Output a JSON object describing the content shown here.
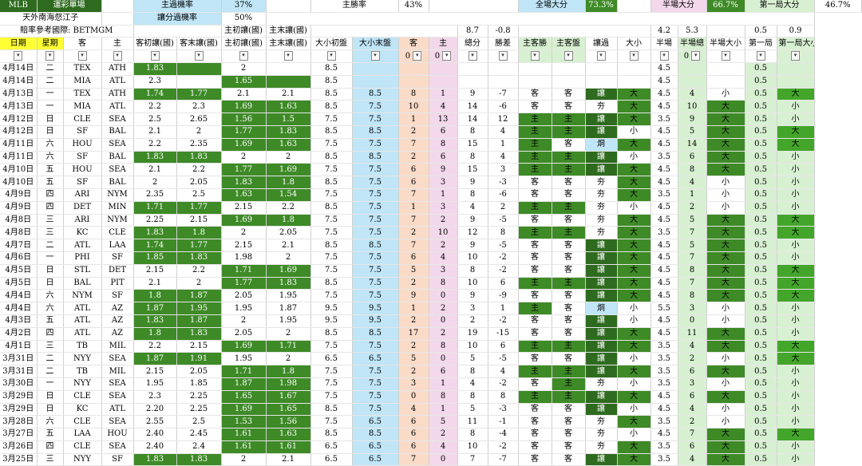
{
  "info": {
    "league": "MLB",
    "sheet_title": "運彩單場",
    "home_pass_label": "主過機率",
    "home_pass_val": "37%",
    "home_win_label": "主勝率",
    "home_win_val": "43%",
    "full_big_label": "全場大分",
    "full_big_val": "73.3%",
    "half_big_label": "半場大分",
    "half_big_val": "66.7%",
    "first_big_label": "第一局大分",
    "first_big_val": "46.7%",
    "author": "天外南海惄江子",
    "handicap_pass_label": "讓分過機率",
    "handicap_pass_val": "50%",
    "odds_ref": "賠率參考國際: BETMGM",
    "home_init_label": "主初讓(國)",
    "home_end_label": "主末讓(國)",
    "avg_total": "8.7",
    "avg_diff": "-0.8",
    "avg_half_a": "4.2",
    "avg_half_b": "5.3",
    "avg_first_a": "0.5",
    "avg_first_b": "0.9"
  },
  "headers": [
    "日期",
    "星期",
    "客",
    "主",
    "客初讓(國)",
    "客末讓(國)",
    "主初讓(國)",
    "主末讓(國)",
    "大小初盤",
    "大小末盤",
    "客",
    "主",
    "總分",
    "勝差",
    "主客勝",
    "主客盤",
    "讓過",
    "大小",
    "半場",
    "半場總",
    "半場大小",
    "第一局",
    "第一局大小"
  ],
  "filter_values": [
    "0",
    "0",
    "0"
  ],
  "rows": [
    {
      "d": "4月14日",
      "w": "二",
      "a": "TEX",
      "h": "ATH",
      "ai": "1.83",
      "ae": "",
      "hi": "2",
      "he": "",
      "ou": "8.5",
      "oe": "",
      "as": "",
      "hs": "",
      "t": "",
      "df": "",
      "wn": "",
      "pn": "",
      "cv": "",
      "bs": "",
      "hl": "4.5",
      "ht": "",
      "hb": "",
      "f": "0.5",
      "fb": ""
    },
    {
      "d": "4月14日",
      "w": "二",
      "a": "MIA",
      "h": "ATL",
      "ai": "2.3",
      "ae": "",
      "hi": "1.65",
      "he": "",
      "ou": "8.5",
      "oe": "",
      "as": "",
      "hs": "",
      "t": "",
      "df": "",
      "wn": "",
      "pn": "",
      "cv": "",
      "bs": "",
      "hl": "4.5",
      "ht": "",
      "hb": "",
      "f": "0.5",
      "fb": ""
    },
    {
      "d": "4月13日",
      "w": "一",
      "a": "TEX",
      "h": "ATH",
      "ai": "1.74",
      "ae": "1.77",
      "hi": "2.1",
      "he": "2.1",
      "ou": "8.5",
      "oe": "8.5",
      "as": "8",
      "hs": "1",
      "t": "9",
      "df": "-7",
      "wn": "客",
      "pn": "客",
      "cv": "讓",
      "bs": "大",
      "hl": "4.5",
      "ht": "4",
      "hb": "小",
      "f": "0.5",
      "fb": "大"
    },
    {
      "d": "4月13日",
      "w": "一",
      "a": "MIA",
      "h": "ATL",
      "ai": "2.2",
      "ae": "2.3",
      "hi": "1.69",
      "he": "1.63",
      "ou": "8.5",
      "oe": "7.5",
      "as": "10",
      "hs": "4",
      "t": "14",
      "df": "-6",
      "wn": "客",
      "pn": "客",
      "cv": "夯",
      "bs": "大",
      "hl": "4.5",
      "ht": "10",
      "hb": "大",
      "f": "0.5",
      "fb": "小"
    },
    {
      "d": "4月12日",
      "w": "日",
      "a": "CLE",
      "h": "SEA",
      "ai": "2.5",
      "ae": "2.65",
      "hi": "1.56",
      "he": "1.5",
      "ou": "7.5",
      "oe": "7.5",
      "as": "1",
      "hs": "13",
      "t": "14",
      "df": "12",
      "wn": "主",
      "pn": "主",
      "cv": "讓",
      "bs": "大",
      "hl": "3.5",
      "ht": "9",
      "hb": "大",
      "f": "0.5",
      "fb": "小"
    },
    {
      "d": "4月12日",
      "w": "日",
      "a": "SF",
      "h": "BAL",
      "ai": "2.1",
      "ae": "2",
      "hi": "1.77",
      "he": "1.83",
      "ou": "8.5",
      "oe": "8.5",
      "as": "2",
      "hs": "6",
      "t": "8",
      "df": "4",
      "wn": "主",
      "pn": "主",
      "cv": "讓",
      "bs": "小",
      "hl": "4.5",
      "ht": "5",
      "hb": "大",
      "f": "0.5",
      "fb": "大"
    },
    {
      "d": "4月11日",
      "w": "六",
      "a": "HOU",
      "h": "SEA",
      "ai": "2.2",
      "ae": "2.35",
      "hi": "1.69",
      "he": "1.63",
      "ou": "7.5",
      "oe": "7.5",
      "as": "7",
      "hs": "8",
      "t": "15",
      "df": "1",
      "wn": "主",
      "pn": "客",
      "cv": "烔",
      "bs": "大",
      "hl": "4.5",
      "ht": "14",
      "hb": "大",
      "f": "0.5",
      "fb": "大"
    },
    {
      "d": "4月11日",
      "w": "六",
      "a": "SF",
      "h": "BAL",
      "ai": "1.83",
      "ae": "1.83",
      "hi": "2",
      "he": "2",
      "ou": "8.5",
      "oe": "8.5",
      "as": "2",
      "hs": "6",
      "t": "8",
      "df": "4",
      "wn": "主",
      "pn": "主",
      "cv": "讓",
      "bs": "小",
      "hl": "3.5",
      "ht": "6",
      "hb": "大",
      "f": "0.5",
      "fb": "小"
    },
    {
      "d": "4月10日",
      "w": "五",
      "a": "HOU",
      "h": "SEA",
      "ai": "2.1",
      "ae": "2.2",
      "hi": "1.77",
      "he": "1.69",
      "ou": "7.5",
      "oe": "7.5",
      "as": "6",
      "hs": "9",
      "t": "15",
      "df": "3",
      "wn": "主",
      "pn": "主",
      "cv": "讓",
      "bs": "大",
      "hl": "4.5",
      "ht": "8",
      "hb": "大",
      "f": "0.5",
      "fb": "小"
    },
    {
      "d": "4月10日",
      "w": "五",
      "a": "SF",
      "h": "BAL",
      "ai": "2",
      "ae": "2.05",
      "hi": "1.83",
      "he": "1.8",
      "ou": "8.5",
      "oe": "7.5",
      "as": "6",
      "hs": "3",
      "t": "9",
      "df": "-3",
      "wn": "客",
      "pn": "客",
      "cv": "夯",
      "bs": "大",
      "hl": "4.5",
      "ht": "4",
      "hb": "小",
      "f": "0.5",
      "fb": "小"
    },
    {
      "d": "4月9日",
      "w": "四",
      "a": "ARI",
      "h": "NYM",
      "ai": "2.35",
      "ae": "2.5",
      "hi": "1.63",
      "he": "1.54",
      "ou": "7.5",
      "oe": "7.5",
      "as": "7",
      "hs": "1",
      "t": "8",
      "df": "-6",
      "wn": "客",
      "pn": "客",
      "cv": "夯",
      "bs": "大",
      "hl": "3.5",
      "ht": "1",
      "hb": "小",
      "f": "0.5",
      "fb": "小"
    },
    {
      "d": "4月9日",
      "w": "四",
      "a": "DET",
      "h": "MIN",
      "ai": "1.71",
      "ae": "1.77",
      "hi": "2.15",
      "he": "2.2",
      "ou": "8.5",
      "oe": "7.5",
      "as": "1",
      "hs": "3",
      "t": "4",
      "df": "2",
      "wn": "主",
      "pn": "主",
      "cv": "夯",
      "bs": "小",
      "hl": "4.5",
      "ht": "2",
      "hb": "小",
      "f": "0.5",
      "fb": "小"
    },
    {
      "d": "4月8日",
      "w": "三",
      "a": "ARI",
      "h": "NYM",
      "ai": "2.25",
      "ae": "2.15",
      "hi": "1.69",
      "he": "1.8",
      "ou": "7.5",
      "oe": "7.5",
      "as": "7",
      "hs": "2",
      "t": "9",
      "df": "-5",
      "wn": "客",
      "pn": "客",
      "cv": "夯",
      "bs": "大",
      "hl": "4.5",
      "ht": "5",
      "hb": "大",
      "f": "0.5",
      "fb": "大"
    },
    {
      "d": "4月8日",
      "w": "三",
      "a": "KC",
      "h": "CLE",
      "ai": "1.83",
      "ae": "1.8",
      "hi": "2",
      "he": "2.05",
      "ou": "7.5",
      "oe": "7.5",
      "as": "2",
      "hs": "10",
      "t": "12",
      "df": "8",
      "wn": "主",
      "pn": "主",
      "cv": "夯",
      "bs": "大",
      "hl": "3.5",
      "ht": "7",
      "hb": "大",
      "f": "0.5",
      "fb": "大"
    },
    {
      "d": "4月7日",
      "w": "二",
      "a": "ATL",
      "h": "LAA",
      "ai": "1.74",
      "ae": "1.77",
      "hi": "2.15",
      "he": "2.1",
      "ou": "8.5",
      "oe": "8.5",
      "as": "7",
      "hs": "2",
      "t": "9",
      "df": "-5",
      "wn": "客",
      "pn": "客",
      "cv": "讓",
      "bs": "大",
      "hl": "4.5",
      "ht": "5",
      "hb": "大",
      "f": "0.5",
      "fb": "小"
    },
    {
      "d": "4月6日",
      "w": "一",
      "a": "PHI",
      "h": "SF",
      "ai": "1.85",
      "ae": "1.83",
      "hi": "1.98",
      "he": "2",
      "ou": "7.5",
      "oe": "7.5",
      "as": "6",
      "hs": "4",
      "t": "10",
      "df": "-2",
      "wn": "客",
      "pn": "客",
      "cv": "讓",
      "bs": "大",
      "hl": "4.5",
      "ht": "7",
      "hb": "大",
      "f": "0.5",
      "fb": "小"
    },
    {
      "d": "4月5日",
      "w": "日",
      "a": "STL",
      "h": "DET",
      "ai": "2.15",
      "ae": "2.2",
      "hi": "1.71",
      "he": "1.69",
      "ou": "7.5",
      "oe": "7.5",
      "as": "5",
      "hs": "3",
      "t": "8",
      "df": "-2",
      "wn": "客",
      "pn": "客",
      "cv": "讓",
      "bs": "大",
      "hl": "4.5",
      "ht": "8",
      "hb": "大",
      "f": "0.5",
      "fb": "大"
    },
    {
      "d": "4月5日",
      "w": "日",
      "a": "BAL",
      "h": "PIT",
      "ai": "2.1",
      "ae": "2",
      "hi": "1.77",
      "he": "1.83",
      "ou": "8.5",
      "oe": "7.5",
      "as": "2",
      "hs": "8",
      "t": "10",
      "df": "6",
      "wn": "主",
      "pn": "主",
      "cv": "讓",
      "bs": "大",
      "hl": "4.5",
      "ht": "7",
      "hb": "大",
      "f": "0.5",
      "fb": "大"
    },
    {
      "d": "4月4日",
      "w": "六",
      "a": "NYM",
      "h": "SF",
      "ai": "1.8",
      "ae": "1.87",
      "hi": "2.05",
      "he": "1.95",
      "ou": "7.5",
      "oe": "7.5",
      "as": "9",
      "hs": "0",
      "t": "9",
      "df": "-9",
      "wn": "客",
      "pn": "客",
      "cv": "讓",
      "bs": "大",
      "hl": "4.5",
      "ht": "8",
      "hb": "大",
      "f": "0.5",
      "fb": "大"
    },
    {
      "d": "4月4日",
      "w": "六",
      "a": "ATL",
      "h": "AZ",
      "ai": "1.87",
      "ae": "1.95",
      "hi": "1.95",
      "he": "1.87",
      "ou": "9.5",
      "oe": "9.5",
      "as": "1",
      "hs": "2",
      "t": "3",
      "df": "1",
      "wn": "主",
      "pn": "客",
      "cv": "烔",
      "bs": "小",
      "hl": "5.5",
      "ht": "3",
      "hb": "小",
      "f": "0.5",
      "fb": "小"
    },
    {
      "d": "4月3日",
      "w": "五",
      "a": "ATL",
      "h": "AZ",
      "ai": "1.83",
      "ae": "1.87",
      "hi": "2",
      "he": "1.95",
      "ou": "9.5",
      "oe": "9.5",
      "as": "2",
      "hs": "0",
      "t": "2",
      "df": "-2",
      "wn": "客",
      "pn": "客",
      "cv": "讓",
      "bs": "小",
      "hl": "4.5",
      "ht": "0",
      "hb": "小",
      "f": "0.5",
      "fb": "小"
    },
    {
      "d": "4月2日",
      "w": "四",
      "a": "ATL",
      "h": "AZ",
      "ai": "1.8",
      "ae": "1.83",
      "hi": "2.05",
      "he": "2",
      "ou": "8.5",
      "oe": "8.5",
      "as": "17",
      "hs": "2",
      "t": "19",
      "df": "-15",
      "wn": "客",
      "pn": "客",
      "cv": "讓",
      "bs": "大",
      "hl": "4.5",
      "ht": "11",
      "hb": "大",
      "f": "0.5",
      "fb": "小"
    },
    {
      "d": "4月1日",
      "w": "三",
      "a": "TB",
      "h": "MIL",
      "ai": "2.2",
      "ae": "2.15",
      "hi": "1.69",
      "he": "1.71",
      "ou": "7.5",
      "oe": "7.5",
      "as": "2",
      "hs": "8",
      "t": "10",
      "df": "6",
      "wn": "主",
      "pn": "主",
      "cv": "讓",
      "bs": "大",
      "hl": "3.5",
      "ht": "4",
      "hb": "大",
      "f": "0.5",
      "fb": "大"
    },
    {
      "d": "3月31日",
      "w": "二",
      "a": "NYY",
      "h": "SEA",
      "ai": "1.87",
      "ae": "1.91",
      "hi": "1.95",
      "he": "2",
      "ou": "6.5",
      "oe": "6.5",
      "as": "5",
      "hs": "0",
      "t": "5",
      "df": "-5",
      "wn": "客",
      "pn": "客",
      "cv": "讓",
      "bs": "小",
      "hl": "3.5",
      "ht": "2",
      "hb": "小",
      "f": "0.5",
      "fb": "大"
    },
    {
      "d": "3月31日",
      "w": "二",
      "a": "TB",
      "h": "MIL",
      "ai": "2.15",
      "ae": "2.05",
      "hi": "1.71",
      "he": "1.8",
      "ou": "7.5",
      "oe": "7.5",
      "as": "2",
      "hs": "6",
      "t": "8",
      "df": "4",
      "wn": "主",
      "pn": "主",
      "cv": "讓",
      "bs": "大",
      "hl": "3.5",
      "ht": "6",
      "hb": "大",
      "f": "0.5",
      "fb": "小"
    },
    {
      "d": "3月30日",
      "w": "一",
      "a": "NYY",
      "h": "SEA",
      "ai": "1.95",
      "ae": "1.85",
      "hi": "1.87",
      "he": "1.98",
      "ou": "7.5",
      "oe": "7.5",
      "as": "3",
      "hs": "1",
      "t": "4",
      "df": "-2",
      "wn": "客",
      "pn": "主",
      "cv": "夯",
      "bs": "小",
      "hl": "3.5",
      "ht": "3",
      "hb": "小",
      "f": "0.5",
      "fb": "小"
    },
    {
      "d": "3月29日",
      "w": "日",
      "a": "CLE",
      "h": "SEA",
      "ai": "2.3",
      "ae": "2.25",
      "hi": "1.65",
      "he": "1.67",
      "ou": "7.5",
      "oe": "7.5",
      "as": "0",
      "hs": "8",
      "t": "8",
      "df": "8",
      "wn": "主",
      "pn": "主",
      "cv": "讓",
      "bs": "大",
      "hl": "4.5",
      "ht": "6",
      "hb": "大",
      "f": "0.5",
      "fb": "小"
    },
    {
      "d": "3月29日",
      "w": "日",
      "a": "KC",
      "h": "ATL",
      "ai": "2.20",
      "ae": "2.25",
      "hi": "1.69",
      "he": "1.65",
      "ou": "8.5",
      "oe": "7.5",
      "as": "4",
      "hs": "1",
      "t": "5",
      "df": "-3",
      "wn": "客",
      "pn": "客",
      "cv": "讓",
      "bs": "小",
      "hl": "4.5",
      "ht": "4",
      "hb": "小",
      "f": "0.5",
      "fb": "小"
    },
    {
      "d": "3月28日",
      "w": "六",
      "a": "CLE",
      "h": "SEA",
      "ai": "2.55",
      "ae": "2.5",
      "hi": "1.53",
      "he": "1.56",
      "ou": "7.5",
      "oe": "6.5",
      "as": "6",
      "hs": "5",
      "t": "11",
      "df": "-1",
      "wn": "客",
      "pn": "客",
      "cv": "夯",
      "bs": "大",
      "hl": "3.5",
      "ht": "2",
      "hb": "小",
      "f": "0.5",
      "fb": "小"
    },
    {
      "d": "3月27日",
      "w": "五",
      "a": "LAA",
      "h": "HOU",
      "ai": "2.40",
      "ae": "2.45",
      "hi": "1.61",
      "he": "1.63",
      "ou": "8.5",
      "oe": "8.5",
      "as": "6",
      "hs": "2",
      "t": "8",
      "df": "-4",
      "wn": "客",
      "pn": "客",
      "cv": "夯",
      "bs": "小",
      "hl": "4.5",
      "ht": "7",
      "hb": "大",
      "f": "0.5",
      "fb": "大"
    },
    {
      "d": "3月26日",
      "w": "四",
      "a": "CLE",
      "h": "SEA",
      "ai": "2.40",
      "ae": "2.4",
      "hi": "1.61",
      "he": "1.61",
      "ou": "6.5",
      "oe": "6.5",
      "as": "6",
      "hs": "4",
      "t": "10",
      "df": "-2",
      "wn": "客",
      "pn": "客",
      "cv": "夯",
      "bs": "大",
      "hl": "3.5",
      "ht": "6",
      "hb": "大",
      "f": "0.5",
      "fb": "小"
    },
    {
      "d": "3月25日",
      "w": "三",
      "a": "NYY",
      "h": "SF",
      "ai": "1.83",
      "ae": "1.83",
      "hi": "2",
      "he": "2.1",
      "ou": "6.5",
      "oe": "6.5",
      "as": "7",
      "hs": "0",
      "t": "7",
      "df": "-7",
      "wn": "客",
      "pn": "客",
      "cv": "讓",
      "bs": "大",
      "hl": "3.5",
      "ht": "4",
      "hb": "大",
      "f": "0.5",
      "fb": "小"
    }
  ]
}
